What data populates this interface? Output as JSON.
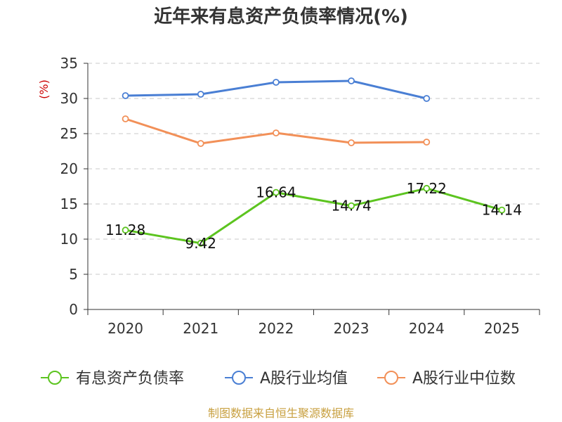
{
  "chart_data": {
    "type": "line",
    "title": "近年来有息资产负债率情况(%)",
    "ylabel": "(%)",
    "categories": [
      "2020",
      "2021",
      "2022",
      "2023",
      "2024",
      "2025"
    ],
    "ylim": [
      0,
      35
    ],
    "yticks": [
      0,
      5,
      10,
      15,
      20,
      25,
      30,
      35
    ],
    "grid": true,
    "legend_position": "bottom",
    "series": [
      {
        "name": "有息资产负债率",
        "color": "#5cc41f",
        "values": [
          11.28,
          9.42,
          16.64,
          14.74,
          17.22,
          14.14
        ],
        "labels": [
          "11.28",
          "9.42",
          "16.64",
          "14.74",
          "17.22",
          "14.14"
        ]
      },
      {
        "name": "A股行业均值",
        "color": "#4a7fd4",
        "values": [
          30.4,
          30.6,
          32.3,
          32.5,
          30.0,
          null
        ]
      },
      {
        "name": "A股行业中位数",
        "color": "#f29058",
        "values": [
          27.1,
          23.6,
          25.1,
          23.7,
          23.8,
          null
        ]
      }
    ],
    "source": "制图数据来自恒生聚源数据库"
  }
}
